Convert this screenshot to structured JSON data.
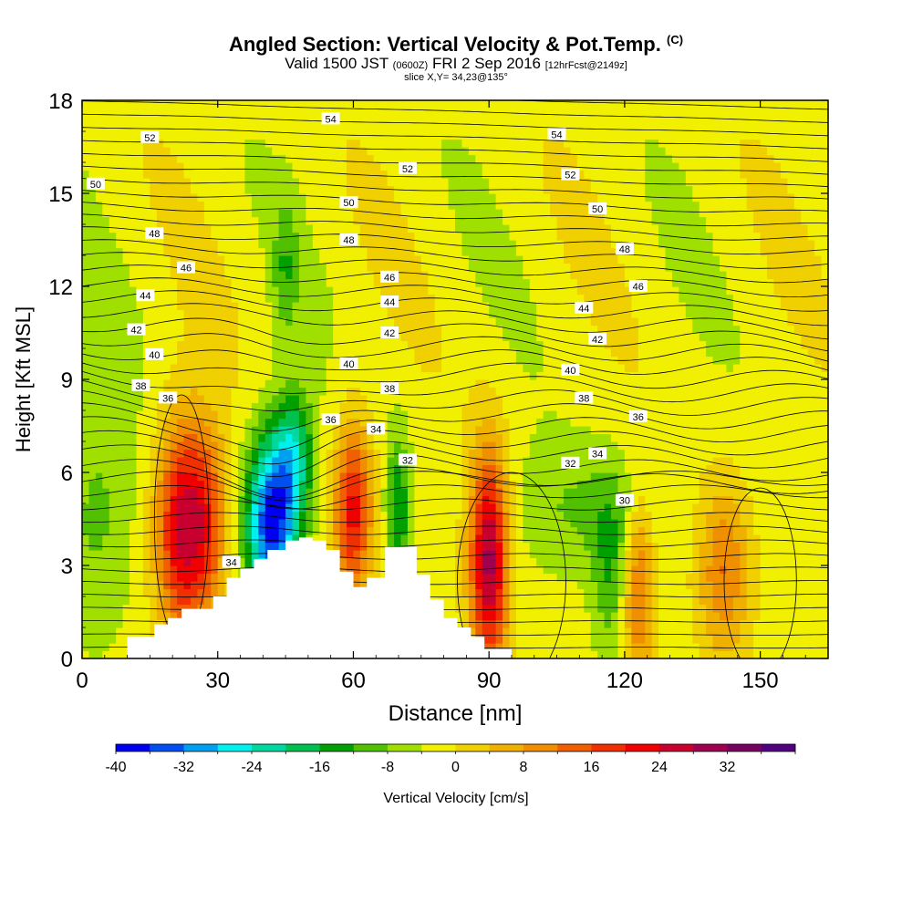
{
  "header": {
    "title_main": "Angled Section: Vertical Velocity & Pot.Temp.",
    "title_copyright": "(C)",
    "valid_prefix": "Valid 1500 JST",
    "valid_utc": "(0600Z)",
    "valid_date": "FRI 2 Sep 2016",
    "valid_fcst": "[12hrFcst@2149z]",
    "slice": "slice X,Y= 34,23@135°"
  },
  "chart_data": {
    "type": "heatmap",
    "title": "Angled Section: Vertical Velocity & Pot.Temp.",
    "xlabel": "Distance [nm]",
    "ylabel": "Height [Kft MSL]",
    "xlim": [
      0,
      165
    ],
    "ylim": [
      0,
      18
    ],
    "x_ticks": [
      0,
      30,
      60,
      90,
      120,
      150
    ],
    "y_ticks": [
      0,
      3,
      6,
      9,
      12,
      15,
      18
    ],
    "colorbar": {
      "label": "Vertical Velocity [cm/s]",
      "tick_labels": [
        "-40",
        "-32",
        "-24",
        "-16",
        "-8",
        "0",
        "8",
        "16",
        "24",
        "32"
      ],
      "bins": [
        {
          "from": -40,
          "to": -36,
          "color": "#0000f0"
        },
        {
          "from": -36,
          "to": -32,
          "color": "#0050f0"
        },
        {
          "from": -32,
          "to": -28,
          "color": "#00a0f0"
        },
        {
          "from": -28,
          "to": -24,
          "color": "#00f0f0"
        },
        {
          "from": -24,
          "to": -20,
          "color": "#00d8a0"
        },
        {
          "from": -20,
          "to": -16,
          "color": "#00c050"
        },
        {
          "from": -16,
          "to": -12,
          "color": "#00a000"
        },
        {
          "from": -12,
          "to": -8,
          "color": "#50c000"
        },
        {
          "from": -8,
          "to": -4,
          "color": "#a0e000"
        },
        {
          "from": -4,
          "to": 0,
          "color": "#f0f000"
        },
        {
          "from": 0,
          "to": 4,
          "color": "#f0d000"
        },
        {
          "from": 4,
          "to": 8,
          "color": "#f0b000"
        },
        {
          "from": 8,
          "to": 12,
          "color": "#f09000"
        },
        {
          "from": 12,
          "to": 16,
          "color": "#f06000"
        },
        {
          "from": 16,
          "to": 20,
          "color": "#f03000"
        },
        {
          "from": 20,
          "to": 24,
          "color": "#f00000"
        },
        {
          "from": 24,
          "to": 28,
          "color": "#c80030"
        },
        {
          "from": 28,
          "to": 32,
          "color": "#a00050"
        },
        {
          "from": 32,
          "to": 36,
          "color": "#780060"
        },
        {
          "from": 36,
          "to": 40,
          "color": "#500080"
        }
      ]
    },
    "terrain_kft": [
      [
        10,
        0.7
      ],
      [
        13,
        0.7
      ],
      [
        16,
        1.1
      ],
      [
        19,
        1.3
      ],
      [
        22,
        1.6
      ],
      [
        29,
        2.0
      ],
      [
        32,
        2.6
      ],
      [
        35,
        2.9
      ],
      [
        38,
        3.2
      ],
      [
        41,
        3.5
      ],
      [
        45,
        3.8
      ],
      [
        48,
        3.9
      ],
      [
        51,
        3.8
      ],
      [
        54,
        3.5
      ],
      [
        57,
        2.8
      ],
      [
        60,
        2.3
      ],
      [
        63,
        2.6
      ],
      [
        66,
        2.6
      ],
      [
        67,
        3.6
      ],
      [
        71,
        3.6
      ],
      [
        74,
        2.7
      ],
      [
        77,
        1.9
      ],
      [
        80,
        1.3
      ],
      [
        83,
        1.0
      ],
      [
        86,
        0.7
      ],
      [
        89,
        0.3
      ],
      [
        92,
        0.3
      ]
    ],
    "velocity_features": [
      {
        "x": 22,
        "y": 4.2,
        "sx": 4,
        "sy": 2.5,
        "value": 26
      },
      {
        "x": 28,
        "y": 4.5,
        "sx": 3.5,
        "sy": 2.2,
        "value": 14
      },
      {
        "x": 42,
        "y": 4.4,
        "sx": 4,
        "sy": 2.0,
        "value": -36
      },
      {
        "x": 47,
        "y": 6.6,
        "sx": 3,
        "sy": 1.5,
        "value": -16
      },
      {
        "x": 60,
        "y": 4.8,
        "sx": 3,
        "sy": 2.0,
        "value": 24
      },
      {
        "x": 70,
        "y": 4.8,
        "sx": 2,
        "sy": 1.8,
        "value": -13
      },
      {
        "x": 90,
        "y": 3.2,
        "sx": 3,
        "sy": 2.5,
        "value": 32
      },
      {
        "x": 123,
        "y": 2.2,
        "sx": 2.5,
        "sy": 2.0,
        "value": 16
      },
      {
        "x": 142,
        "y": 2.8,
        "sx": 4,
        "sy": 2.0,
        "value": 14
      },
      {
        "x": 117,
        "y": 2.8,
        "sx": 3,
        "sy": 2.0,
        "value": -9
      },
      {
        "x": 3,
        "y": 4.8,
        "sx": 6,
        "sy": 3.0,
        "value": -7
      },
      {
        "x": 110,
        "y": 4.8,
        "sx": 12,
        "sy": 1.5,
        "value": -6
      },
      {
        "x": 45,
        "y": 12.5,
        "sx": 2,
        "sy": 1.5,
        "value": -8
      }
    ],
    "isentrope_labels": [
      {
        "text": "54",
        "x": 55,
        "y": 17.4
      },
      {
        "text": "54",
        "x": 105,
        "y": 16.9
      },
      {
        "text": "52",
        "x": 15,
        "y": 16.8
      },
      {
        "text": "52",
        "x": 72,
        "y": 15.8
      },
      {
        "text": "52",
        "x": 108,
        "y": 15.6
      },
      {
        "text": "50",
        "x": 3,
        "y": 15.3
      },
      {
        "text": "50",
        "x": 59,
        "y": 14.7
      },
      {
        "text": "50",
        "x": 114,
        "y": 14.5
      },
      {
        "text": "48",
        "x": 16,
        "y": 13.7
      },
      {
        "text": "48",
        "x": 59,
        "y": 13.5
      },
      {
        "text": "48",
        "x": 120,
        "y": 13.2
      },
      {
        "text": "46",
        "x": 23,
        "y": 12.6
      },
      {
        "text": "46",
        "x": 68,
        "y": 12.3
      },
      {
        "text": "46",
        "x": 123,
        "y": 12.0
      },
      {
        "text": "44",
        "x": 14,
        "y": 11.7
      },
      {
        "text": "44",
        "x": 68,
        "y": 11.5
      },
      {
        "text": "44",
        "x": 111,
        "y": 11.3
      },
      {
        "text": "42",
        "x": 12,
        "y": 10.6
      },
      {
        "text": "42",
        "x": 68,
        "y": 10.5
      },
      {
        "text": "42",
        "x": 114,
        "y": 10.3
      },
      {
        "text": "40",
        "x": 16,
        "y": 9.8
      },
      {
        "text": "40",
        "x": 59,
        "y": 9.5
      },
      {
        "text": "40",
        "x": 108,
        "y": 9.3
      },
      {
        "text": "38",
        "x": 13,
        "y": 8.8
      },
      {
        "text": "38",
        "x": 68,
        "y": 8.7
      },
      {
        "text": "38",
        "x": 111,
        "y": 8.4
      },
      {
        "text": "36",
        "x": 19,
        "y": 8.4
      },
      {
        "text": "36",
        "x": 55,
        "y": 7.7
      },
      {
        "text": "36",
        "x": 123,
        "y": 7.8
      },
      {
        "text": "34",
        "x": 65,
        "y": 7.4
      },
      {
        "text": "34",
        "x": 114,
        "y": 6.6
      },
      {
        "text": "34",
        "x": 33,
        "y": 3.1
      },
      {
        "text": "32",
        "x": 72,
        "y": 6.4
      },
      {
        "text": "32",
        "x": 108,
        "y": 6.3
      },
      {
        "text": "30",
        "x": 120,
        "y": 5.1
      }
    ]
  }
}
